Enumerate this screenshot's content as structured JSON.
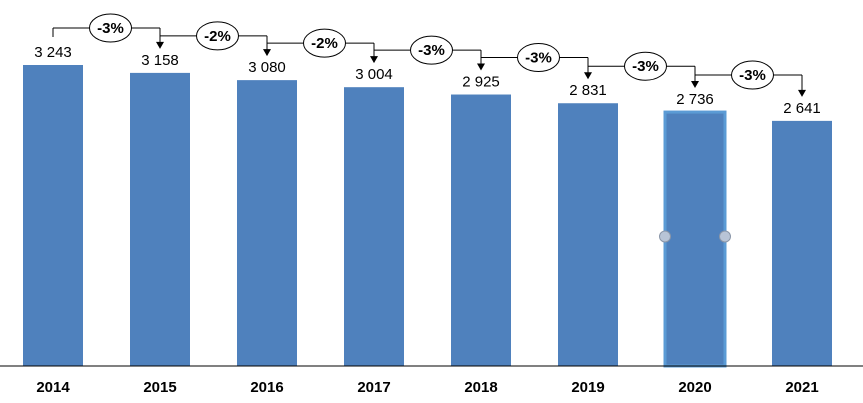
{
  "chart_data": {
    "type": "bar",
    "categories": [
      "2014",
      "2015",
      "2016",
      "2017",
      "2018",
      "2019",
      "2020",
      "2021"
    ],
    "values": [
      3243,
      3158,
      3080,
      3004,
      2925,
      2831,
      2736,
      2641
    ],
    "value_labels": [
      "3 243",
      "3 158",
      "3 080",
      "3 004",
      "2 925",
      "2 831",
      "2 736",
      "2 641"
    ],
    "changes": [
      "-3%",
      "-2%",
      "-2%",
      "-3%",
      "-3%",
      "-3%",
      "-3%"
    ],
    "title": "",
    "xlabel": "",
    "ylabel": "",
    "ylim": [
      0,
      3243
    ],
    "grid": false,
    "legend": "none",
    "selected_category": "2020",
    "colors": {
      "bar": "#4f81bd",
      "bar_selected_border": "#5b9bd5",
      "axis": "#000000",
      "bubble_fill": "#ffffff",
      "bubble_stroke": "#000000",
      "connector": "#000000",
      "handle": "#b8c4d6"
    }
  }
}
